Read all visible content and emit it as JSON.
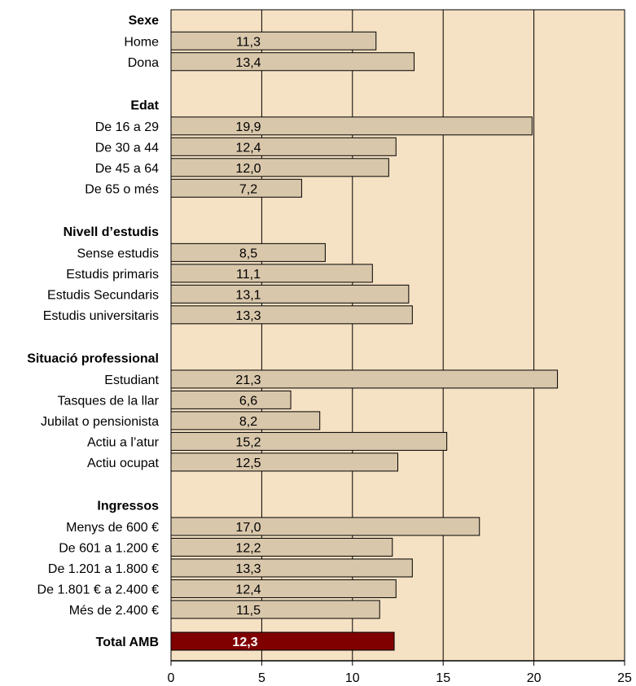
{
  "chart_data": {
    "type": "bar",
    "orientation": "horizontal",
    "xlim": [
      0,
      25
    ],
    "xticks": [
      "0",
      "5",
      "10",
      "15",
      "20",
      "25"
    ],
    "grid": "vertical",
    "groups": [
      {
        "title": "Sexe",
        "items": [
          {
            "label": "Home",
            "value": 11.3,
            "text": "11,3"
          },
          {
            "label": "Dona",
            "value": 13.4,
            "text": "13,4"
          }
        ]
      },
      {
        "title": "Edat",
        "items": [
          {
            "label": "De 16 a 29",
            "value": 19.9,
            "text": "19,9"
          },
          {
            "label": "De 30 a 44",
            "value": 12.4,
            "text": "12,4"
          },
          {
            "label": "De 45 a 64",
            "value": 12.0,
            "text": "12,0"
          },
          {
            "label": "De 65 o més",
            "value": 7.2,
            "text": "7,2"
          }
        ]
      },
      {
        "title": "Nivell d’estudis",
        "items": [
          {
            "label": "Sense estudis",
            "value": 8.5,
            "text": "8,5"
          },
          {
            "label": "Estudis primaris",
            "value": 11.1,
            "text": "11,1"
          },
          {
            "label": "Estudis Secundaris",
            "value": 13.1,
            "text": "13,1"
          },
          {
            "label": "Estudis universitaris",
            "value": 13.3,
            "text": "13,3"
          }
        ]
      },
      {
        "title": "Situació professional",
        "items": [
          {
            "label": "Estudiant",
            "value": 21.3,
            "text": "21,3"
          },
          {
            "label": "Tasques de la llar",
            "value": 6.6,
            "text": "6,6"
          },
          {
            "label": "Jubilat o pensionista",
            "value": 8.2,
            "text": "8,2"
          },
          {
            "label": "Actiu a l’atur",
            "value": 15.2,
            "text": "15,2"
          },
          {
            "label": "Actiu ocupat",
            "value": 12.5,
            "text": "12,5"
          }
        ]
      },
      {
        "title": "Ingressos",
        "items": [
          {
            "label": "Menys de 600 €",
            "value": 17.0,
            "text": "17,0"
          },
          {
            "label": "De 601 a 1.200 €",
            "value": 12.2,
            "text": "12,2"
          },
          {
            "label": "De 1.201 a 1.800 €",
            "value": 13.3,
            "text": "13,3"
          },
          {
            "label": "De 1.801 € a 2.400 €",
            "value": 12.4,
            "text": "12,4"
          },
          {
            "label": "Més de 2.400 €",
            "value": 11.5,
            "text": "11,5"
          }
        ]
      }
    ],
    "total": {
      "label": "Total AMB",
      "value": 12.3,
      "text": "12,3"
    }
  },
  "colors": {
    "plot_background": "#f5e1c3",
    "bar_fill": "#d9c7ab",
    "total_fill": "#800000",
    "grid": "#000000",
    "border": "#000000"
  }
}
